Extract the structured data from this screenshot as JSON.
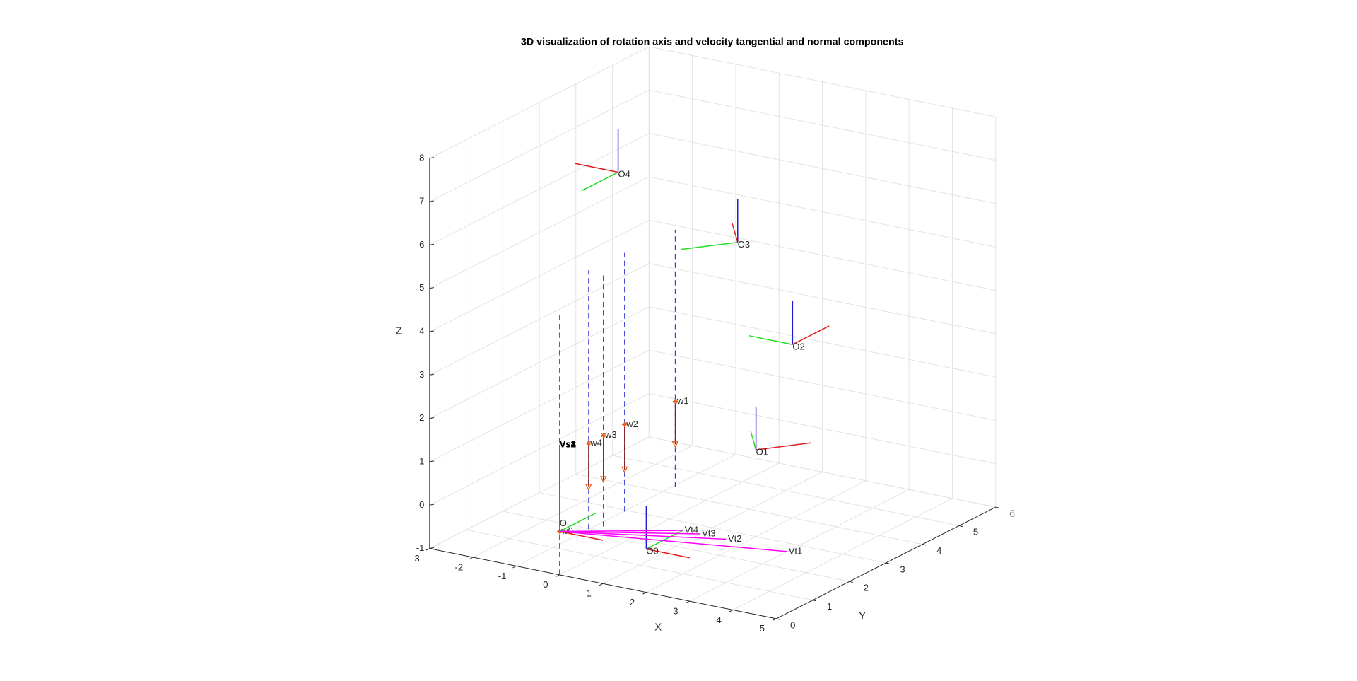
{
  "chart_data": {
    "type": "line3d",
    "title": "3D visualization of rotation axis and velocity tangential and normal components",
    "xlabel": "X",
    "ylabel": "Y",
    "zlabel": "Z",
    "xlim": [
      -3,
      5
    ],
    "ylim": [
      0,
      6
    ],
    "zlim": [
      -1,
      8
    ],
    "xticks": [
      -3,
      -2,
      -1,
      0,
      1,
      2,
      3,
      4,
      5
    ],
    "yticks": [
      0,
      1,
      2,
      3,
      4,
      5,
      6
    ],
    "zticks": [
      -1,
      0,
      1,
      2,
      3,
      4,
      5,
      6,
      7,
      8
    ],
    "grid": true,
    "axis_colors": [
      "#e31a1c",
      "#22dd22",
      "#1f1fd6"
    ],
    "frames": [
      {
        "name": "O",
        "origin": [
          0,
          0,
          0
        ],
        "axes": [
          [
            1,
            0,
            0
          ],
          [
            0,
            1,
            0
          ],
          [
            0,
            0,
            1
          ]
        ]
      },
      {
        "name": "O0",
        "origin": [
          2,
          0,
          0
        ],
        "axes": [
          [
            1,
            0,
            0
          ],
          [
            0,
            1,
            0
          ],
          [
            0,
            0,
            1
          ]
        ]
      },
      {
        "name": "O1",
        "origin": [
          2,
          3,
          1
        ],
        "axes": [
          [
            0.68,
            0.7,
            0
          ],
          [
            0.3,
            -0.5,
            0.7
          ],
          [
            0,
            0,
            1
          ]
        ]
      },
      {
        "name": "O2",
        "origin": [
          2,
          4,
          3
        ],
        "axes": [
          [
            0,
            1,
            0
          ],
          [
            -1,
            0,
            0
          ],
          [
            0,
            0,
            1
          ]
        ]
      },
      {
        "name": "O3",
        "origin": [
          2,
          2.5,
          6
        ],
        "axes": [
          [
            0,
            -0.15,
            0.5
          ],
          [
            -0.71,
            -0.71,
            0
          ],
          [
            0,
            0,
            1
          ]
        ]
      },
      {
        "name": "O4",
        "origin": [
          0,
          1.6,
          7.6
        ],
        "axes": [
          [
            -1,
            0,
            0
          ],
          [
            0,
            -1,
            0
          ],
          [
            0,
            0,
            1
          ]
        ]
      }
    ],
    "rotation_axis_color": "#3b3bd9",
    "marker_color": "#e8601c",
    "rotation_axes": [
      {
        "name": "w0",
        "x": 0,
        "y": 0,
        "z_range": [
          -1,
          5.05
        ],
        "w_z": 0
      },
      {
        "name": "w1",
        "x": 2.67,
        "y": 0,
        "z_range": [
          1.56,
          7.5
        ],
        "w_z": 3.54,
        "marker_z": 2.55
      },
      {
        "name": "w2",
        "x": 1.5,
        "y": 0,
        "z_range": [
          0.76,
          6.73
        ],
        "w_z": 2.77,
        "marker_z": 1.73
      },
      {
        "name": "w3",
        "x": 1.01,
        "y": 0,
        "z_range": [
          0.32,
          6.2
        ],
        "w_z": 2.42,
        "marker_z": 1.41
      },
      {
        "name": "w4",
        "x": 0.67,
        "y": 0,
        "z_range": [
          0.19,
          6.16
        ],
        "w_z": 2.17,
        "marker_z": 1.16
      }
    ],
    "velocity_color": "#ff00ff",
    "velocity_origin": [
      0,
      0,
      0
    ],
    "tangential": [
      {
        "name": "Vt1",
        "end": [
          4.4,
          1,
          0
        ]
      },
      {
        "name": "Vt2",
        "end": [
          3,
          1,
          0
        ]
      },
      {
        "name": "Vt3",
        "end": [
          2.4,
          1,
          0
        ]
      },
      {
        "name": "Vt4",
        "end": [
          2,
          1,
          0
        ]
      }
    ],
    "normal": [
      {
        "name": "Vs1",
        "end": [
          0,
          0,
          2
        ]
      },
      {
        "name": "Vs2",
        "end": [
          0,
          0,
          2
        ]
      },
      {
        "name": "Vs3",
        "end": [
          0,
          0,
          2
        ]
      },
      {
        "name": "Vs4",
        "end": [
          0,
          0,
          2
        ]
      }
    ]
  }
}
